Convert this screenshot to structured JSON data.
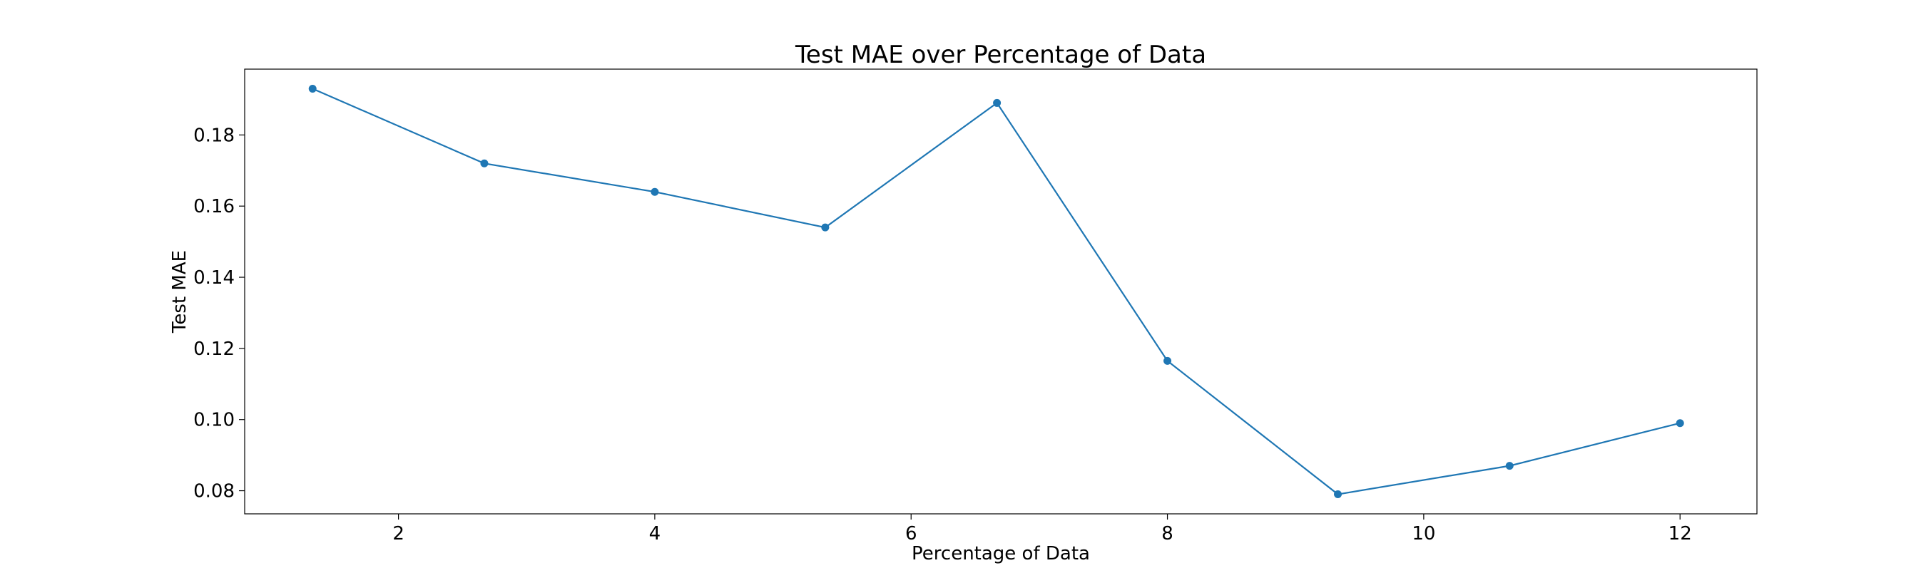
{
  "chart_data": {
    "type": "line",
    "title": "Test MAE over Percentage of Data",
    "xlabel": "Percentage of Data",
    "ylabel": "Test MAE",
    "xlim": [
      0.8,
      12.6
    ],
    "ylim": [
      0.0735,
      0.1985
    ],
    "xticks": [
      2,
      4,
      6,
      8,
      10,
      12
    ],
    "yticks": [
      0.08,
      0.1,
      0.12,
      0.14,
      0.16,
      0.18
    ],
    "xtick_labels": [
      "2",
      "4",
      "6",
      "8",
      "10",
      "12"
    ],
    "ytick_labels": [
      "0.08",
      "0.10",
      "0.12",
      "0.14",
      "0.16",
      "0.18"
    ],
    "grid": false,
    "legend": null,
    "series": [
      {
        "color": "#1f77b4",
        "marker": "circle",
        "x": [
          1.33,
          2.67,
          4.0,
          5.33,
          6.67,
          8.0,
          9.33,
          10.67,
          12.0
        ],
        "y": [
          0.193,
          0.172,
          0.164,
          0.154,
          0.189,
          0.1165,
          0.079,
          0.087,
          0.099
        ]
      }
    ]
  }
}
